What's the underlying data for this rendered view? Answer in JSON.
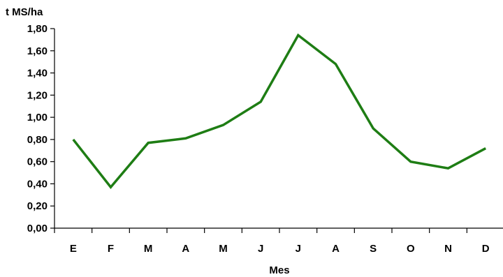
{
  "chart_data": {
    "type": "line",
    "title": "",
    "ylabel": "t MS/ha",
    "xlabel": "Mes",
    "categories": [
      "E",
      "F",
      "M",
      "A",
      "M",
      "J",
      "J",
      "A",
      "S",
      "O",
      "N",
      "D"
    ],
    "series": [
      {
        "values": [
          0.8,
          0.37,
          0.77,
          0.81,
          0.93,
          1.14,
          1.74,
          1.48,
          0.9,
          0.6,
          0.54,
          0.72
        ],
        "color": "#1e7d14"
      }
    ],
    "ylim": [
      0,
      1.8
    ],
    "yticks": [
      "0,00",
      "0,20",
      "0,40",
      "0,60",
      "0,80",
      "1,00",
      "1,20",
      "1,40",
      "1,60",
      "1,80"
    ],
    "grid": false,
    "legend": "none"
  }
}
